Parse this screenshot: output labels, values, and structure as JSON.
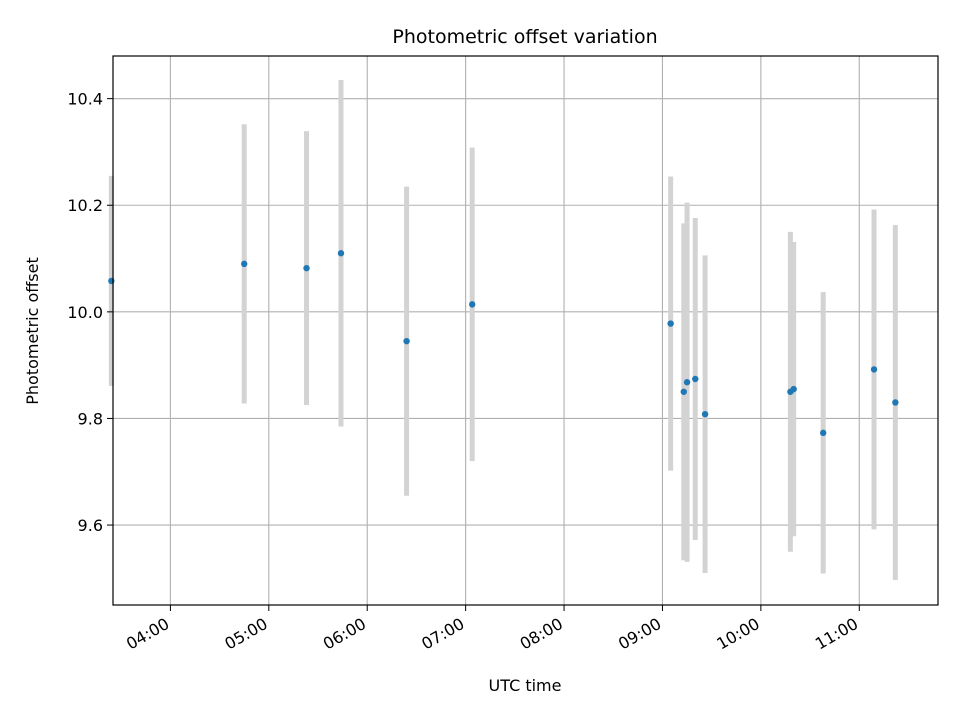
{
  "chart_data": {
    "type": "scatter",
    "title": "Photometric offset variation",
    "xlabel": "UTC time",
    "ylabel": "Photometric offset",
    "x_ticks": [
      "04:00",
      "05:00",
      "06:00",
      "07:00",
      "08:00",
      "09:00",
      "10:00",
      "11:00"
    ],
    "y_ticks": [
      "9.6",
      "9.8",
      "10.0",
      "10.2",
      "10.4"
    ],
    "xlim": [
      "03:25",
      "11:48"
    ],
    "ylim": [
      9.45,
      10.48
    ],
    "grid": true,
    "colors": {
      "points": "#1f77b4",
      "errorbars": "#d3d3d3",
      "grid": "#b0b0b0"
    },
    "points": [
      {
        "x": "03:24",
        "y": 10.058,
        "err": 0.197
      },
      {
        "x": "04:45",
        "y": 10.09,
        "err": 0.262
      },
      {
        "x": "05:23",
        "y": 10.082,
        "err": 0.257
      },
      {
        "x": "05:44",
        "y": 10.11,
        "err": 0.325
      },
      {
        "x": "06:24",
        "y": 9.945,
        "err": 0.29
      },
      {
        "x": "07:04",
        "y": 10.014,
        "err": 0.294
      },
      {
        "x": "09:05",
        "y": 9.978,
        "err": 0.276
      },
      {
        "x": "09:13",
        "y": 9.85,
        "err": 0.316
      },
      {
        "x": "09:15",
        "y": 9.868,
        "err": 0.337
      },
      {
        "x": "09:20",
        "y": 9.874,
        "err": 0.302
      },
      {
        "x": "09:26",
        "y": 9.808,
        "err": 0.298
      },
      {
        "x": "10:18",
        "y": 9.85,
        "err": 0.3
      },
      {
        "x": "10:20",
        "y": 9.855,
        "err": 0.276
      },
      {
        "x": "10:38",
        "y": 9.773,
        "err": 0.264
      },
      {
        "x": "11:09",
        "y": 9.892,
        "err": 0.3
      },
      {
        "x": "11:22",
        "y": 9.83,
        "err": 0.333
      }
    ]
  }
}
